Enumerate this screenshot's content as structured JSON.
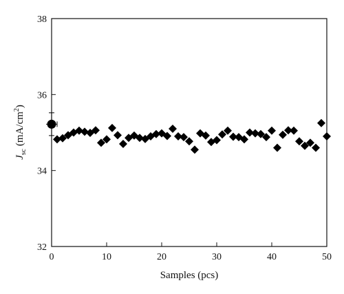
{
  "chart_data": {
    "type": "scatter",
    "title": "",
    "xlabel": "Samples (pcs)",
    "ylabel_main": "J",
    "ylabel_sub": "sc",
    "ylabel_unit": "(mA/cm",
    "ylabel_sup": "2",
    "ylabel_close": ")",
    "xlim": [
      0,
      50
    ],
    "ylim": [
      32,
      38
    ],
    "xticks": [
      0,
      10,
      20,
      30,
      40,
      50
    ],
    "yticks": [
      32,
      34,
      36,
      38
    ],
    "grid": false,
    "series": [
      {
        "marker": "diamond",
        "x": [
          1,
          2,
          3,
          4,
          5,
          6,
          7,
          8,
          9,
          10,
          11,
          12,
          13,
          14,
          15,
          16,
          17,
          18,
          19,
          20,
          21,
          22,
          23,
          24,
          25,
          26,
          27,
          28,
          29,
          30,
          31,
          32,
          33,
          34,
          35,
          36,
          37,
          38,
          39,
          40,
          41,
          42,
          43,
          44,
          45,
          46,
          47,
          48,
          49,
          50
        ],
        "y": [
          34.82,
          34.85,
          34.93,
          35.0,
          35.05,
          35.02,
          34.99,
          35.06,
          34.73,
          34.82,
          35.12,
          34.93,
          34.7,
          34.86,
          34.92,
          34.86,
          34.83,
          34.9,
          34.96,
          34.98,
          34.91,
          35.1,
          34.9,
          34.88,
          34.77,
          34.55,
          34.98,
          34.92,
          34.75,
          34.8,
          34.95,
          35.05,
          34.89,
          34.88,
          34.82,
          35.0,
          34.98,
          34.96,
          34.88,
          35.05,
          34.6,
          34.94,
          35.06,
          35.05,
          34.77,
          34.65,
          34.73,
          34.6,
          35.25,
          34.9
        ]
      },
      {
        "marker": "circle",
        "x": [
          0
        ],
        "y": [
          35.22
        ],
        "xerr": [
          1
        ],
        "yerr": [
          0.3
        ]
      }
    ]
  }
}
